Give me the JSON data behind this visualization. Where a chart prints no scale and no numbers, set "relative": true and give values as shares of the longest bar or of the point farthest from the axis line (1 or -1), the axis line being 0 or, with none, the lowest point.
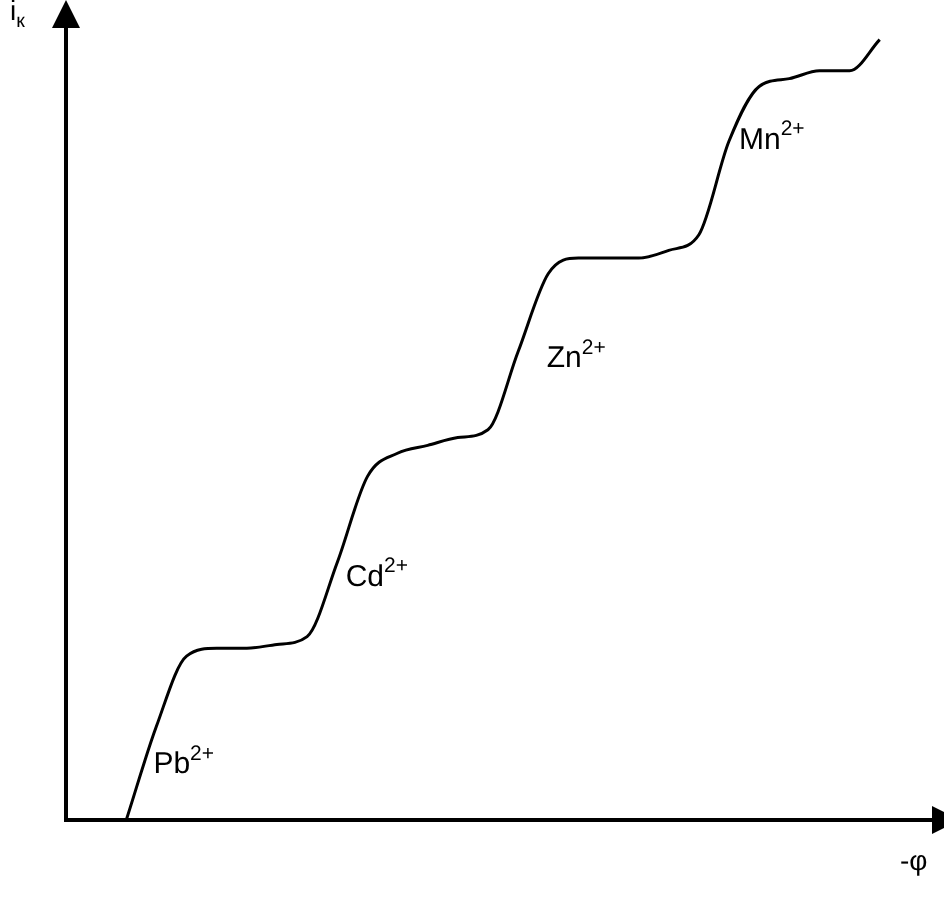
{
  "chart_data": {
    "type": "line",
    "relative": true,
    "xlabel": "-φ",
    "ylabel": "i$_{к}$",
    "color": "#000000",
    "marker": "none",
    "grid": false,
    "legend": false,
    "categories": [
      null,
      null,
      null,
      null,
      null,
      null,
      null,
      null,
      null,
      null,
      null,
      null,
      null,
      null,
      null,
      null,
      null,
      null,
      null,
      null,
      null,
      null,
      null,
      null,
      null,
      null,
      null,
      null,
      null,
      null
    ],
    "values": [
      null,
      null,
      0,
      0.12,
      0.21,
      0.22,
      0.22,
      0.225,
      0.235,
      0.33,
      0.44,
      0.47,
      0.48,
      0.49,
      0.5,
      0.6,
      0.7,
      0.72,
      0.72,
      0.72,
      0.73,
      0.75,
      0.87,
      0.94,
      0.95,
      0.96,
      0.96,
      1,
      null,
      null
    ],
    "annotations": [
      "Pb$^{2+}$",
      "Cd$^{2+}$",
      "Zn$^{2+}$",
      "Mn$^{2+}$"
    ]
  }
}
